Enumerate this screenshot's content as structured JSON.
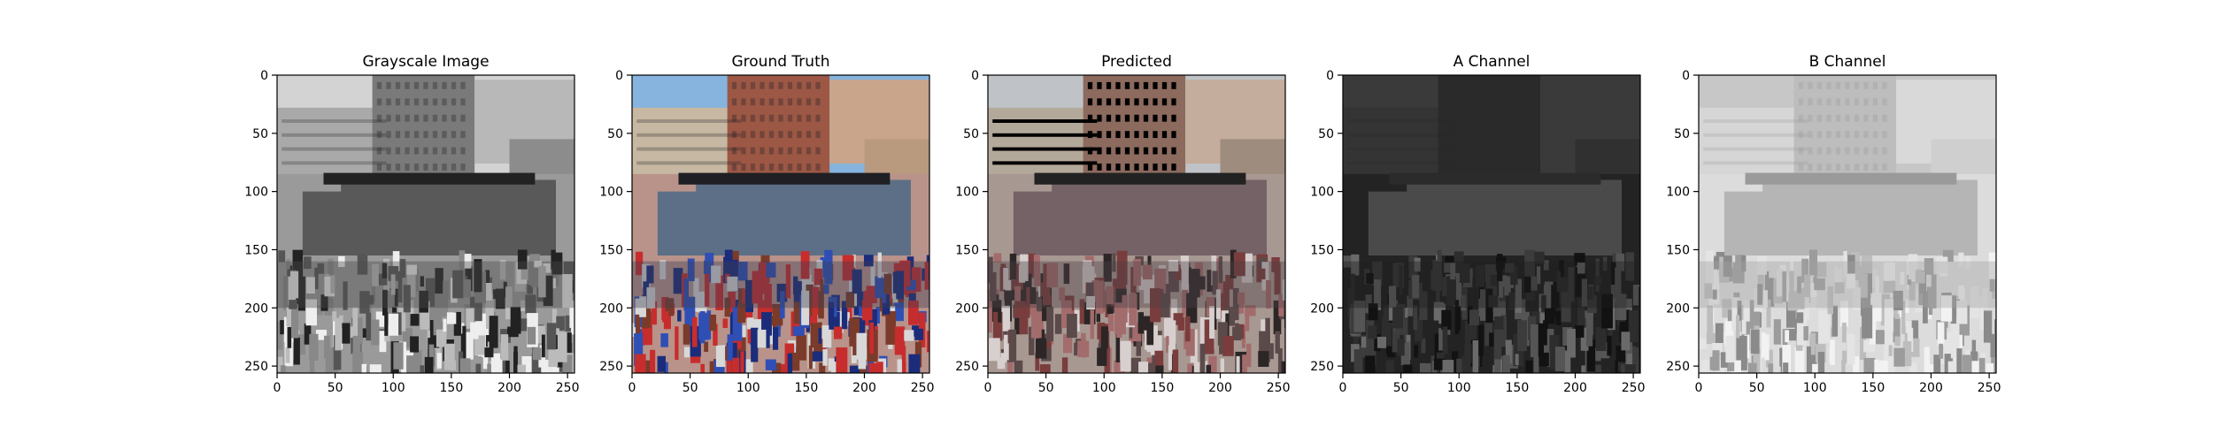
{
  "figure": {
    "panels": [
      {
        "title": "Grayscale Image",
        "palette": "gray",
        "xticks": [
          0,
          50,
          100,
          150,
          200,
          250
        ],
        "yticks": [
          0,
          50,
          100,
          150,
          200,
          250
        ]
      },
      {
        "title": "Ground Truth",
        "palette": "color",
        "xticks": [
          0,
          50,
          100,
          150,
          200,
          250
        ],
        "yticks": [
          0,
          50,
          100,
          150,
          200,
          250
        ]
      },
      {
        "title": "Predicted",
        "palette": "muted",
        "xticks": [
          0,
          50,
          100,
          150,
          200,
          250
        ],
        "yticks": [
          0,
          50,
          100,
          150,
          200,
          250
        ]
      },
      {
        "title": "A Channel",
        "palette": "dark",
        "xticks": [
          0,
          50,
          100,
          150,
          200,
          250
        ],
        "yticks": [
          0,
          50,
          100,
          150,
          200,
          250
        ]
      },
      {
        "title": "B Channel",
        "palette": "light",
        "xticks": [
          0,
          50,
          100,
          150,
          200,
          250
        ],
        "yticks": [
          0,
          50,
          100,
          150,
          200,
          250
        ]
      }
    ],
    "image_extent": [
      0,
      256
    ]
  }
}
